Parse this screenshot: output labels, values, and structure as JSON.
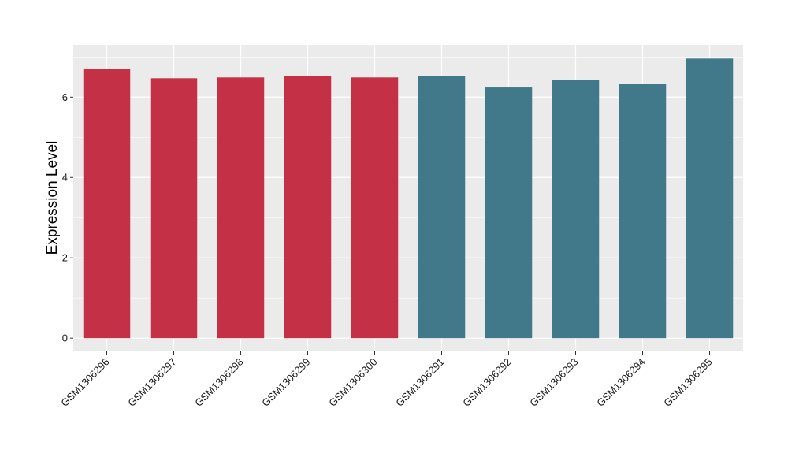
{
  "chart_data": {
    "type": "bar",
    "title": "",
    "xlabel": "",
    "ylabel": "Expression Level",
    "categories": [
      "GSM1306296",
      "GSM1306297",
      "GSM1306298",
      "GSM1306299",
      "GSM1306300",
      "GSM1306291",
      "GSM1306292",
      "GSM1306293",
      "GSM1306294",
      "GSM1306295"
    ],
    "values": [
      6.7,
      6.47,
      6.49,
      6.53,
      6.49,
      6.53,
      6.24,
      6.43,
      6.33,
      6.96
    ],
    "bar_colors": [
      "#C43147",
      "#C43147",
      "#C43147",
      "#C43147",
      "#C43147",
      "#42798A",
      "#42798A",
      "#42798A",
      "#42798A",
      "#42798A"
    ],
    "ylim": [
      -0.33,
      7.3
    ],
    "yticks": [
      0,
      2,
      4,
      6
    ],
    "ytick_labels": [
      "0",
      "2",
      "4",
      "6"
    ],
    "grid": true,
    "legend": "none",
    "panel_background": "#EBEBEB",
    "gridline_color": "#FFFFFF"
  }
}
